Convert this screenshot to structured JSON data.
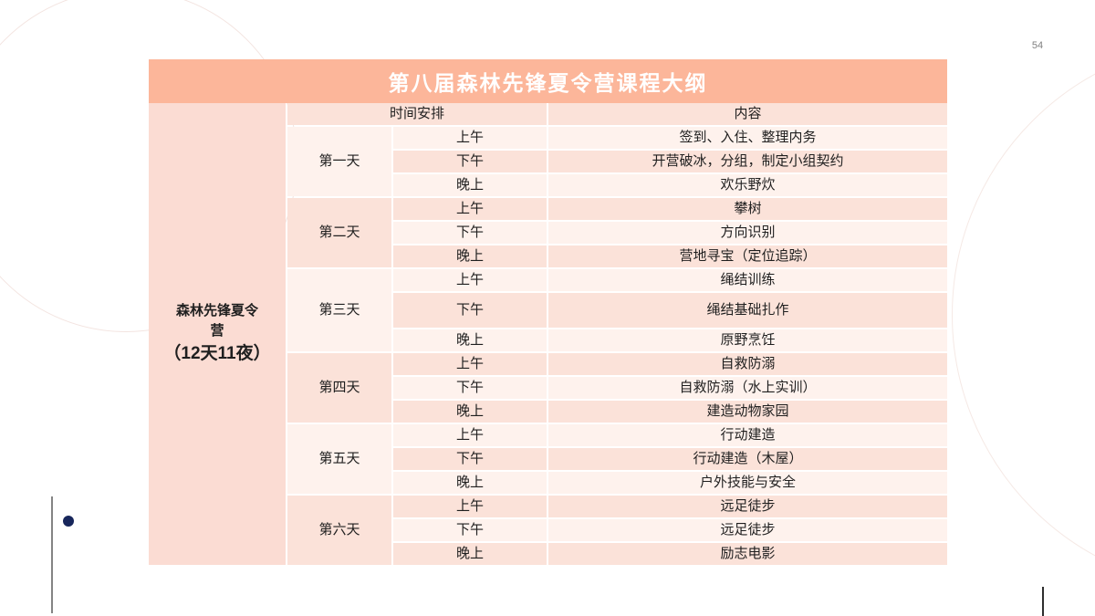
{
  "page_number": "54",
  "title": "第八届森林先锋夏令营课程大纲",
  "camp": {
    "name": "森林先锋夏令营",
    "duration": "（12天11夜）"
  },
  "table": {
    "time_header": "时间安排",
    "content_header": "内容",
    "days": [
      {
        "label": "第一天",
        "sessions": [
          {
            "time": "上午",
            "content": "签到、入住、整理内务"
          },
          {
            "time": "下午",
            "content": "开营破冰，分组，制定小组契约"
          },
          {
            "time": "晚上",
            "content": "欢乐野炊"
          }
        ]
      },
      {
        "label": "第二天",
        "sessions": [
          {
            "time": "上午",
            "content": "攀树"
          },
          {
            "time": "下午",
            "content": "方向识别"
          },
          {
            "time": "晚上",
            "content": "营地寻宝（定位追踪）"
          }
        ]
      },
      {
        "label": "第三天",
        "sessions": [
          {
            "time": "上午",
            "content": "绳结训练"
          },
          {
            "time": "下午",
            "content": "绳结基础扎作",
            "tall": true
          },
          {
            "time": "晚上",
            "content": "原野烹饪"
          }
        ]
      },
      {
        "label": "第四天",
        "sessions": [
          {
            "time": "上午",
            "content": "自救防溺"
          },
          {
            "time": "下午",
            "content": "自救防溺（水上实训）"
          },
          {
            "time": "晚上",
            "content": "建造动物家园"
          }
        ]
      },
      {
        "label": "第五天",
        "sessions": [
          {
            "time": "上午",
            "content": "行动建造"
          },
          {
            "time": "下午",
            "content": "行动建造（木屋）"
          },
          {
            "time": "晚上",
            "content": "户外技能与安全"
          }
        ]
      },
      {
        "label": "第六天",
        "sessions": [
          {
            "time": "上午",
            "content": "远足徒步"
          },
          {
            "time": "下午",
            "content": "远足徒步"
          },
          {
            "time": "晚上",
            "content": "励志电影"
          }
        ]
      }
    ]
  },
  "colors": {
    "title_bar": "#fcb69a",
    "row_light": "#fef2ed",
    "row_dark": "#fbe2d9",
    "camp_cell": "#fbdcd3",
    "accent_dot": "#17265b"
  }
}
